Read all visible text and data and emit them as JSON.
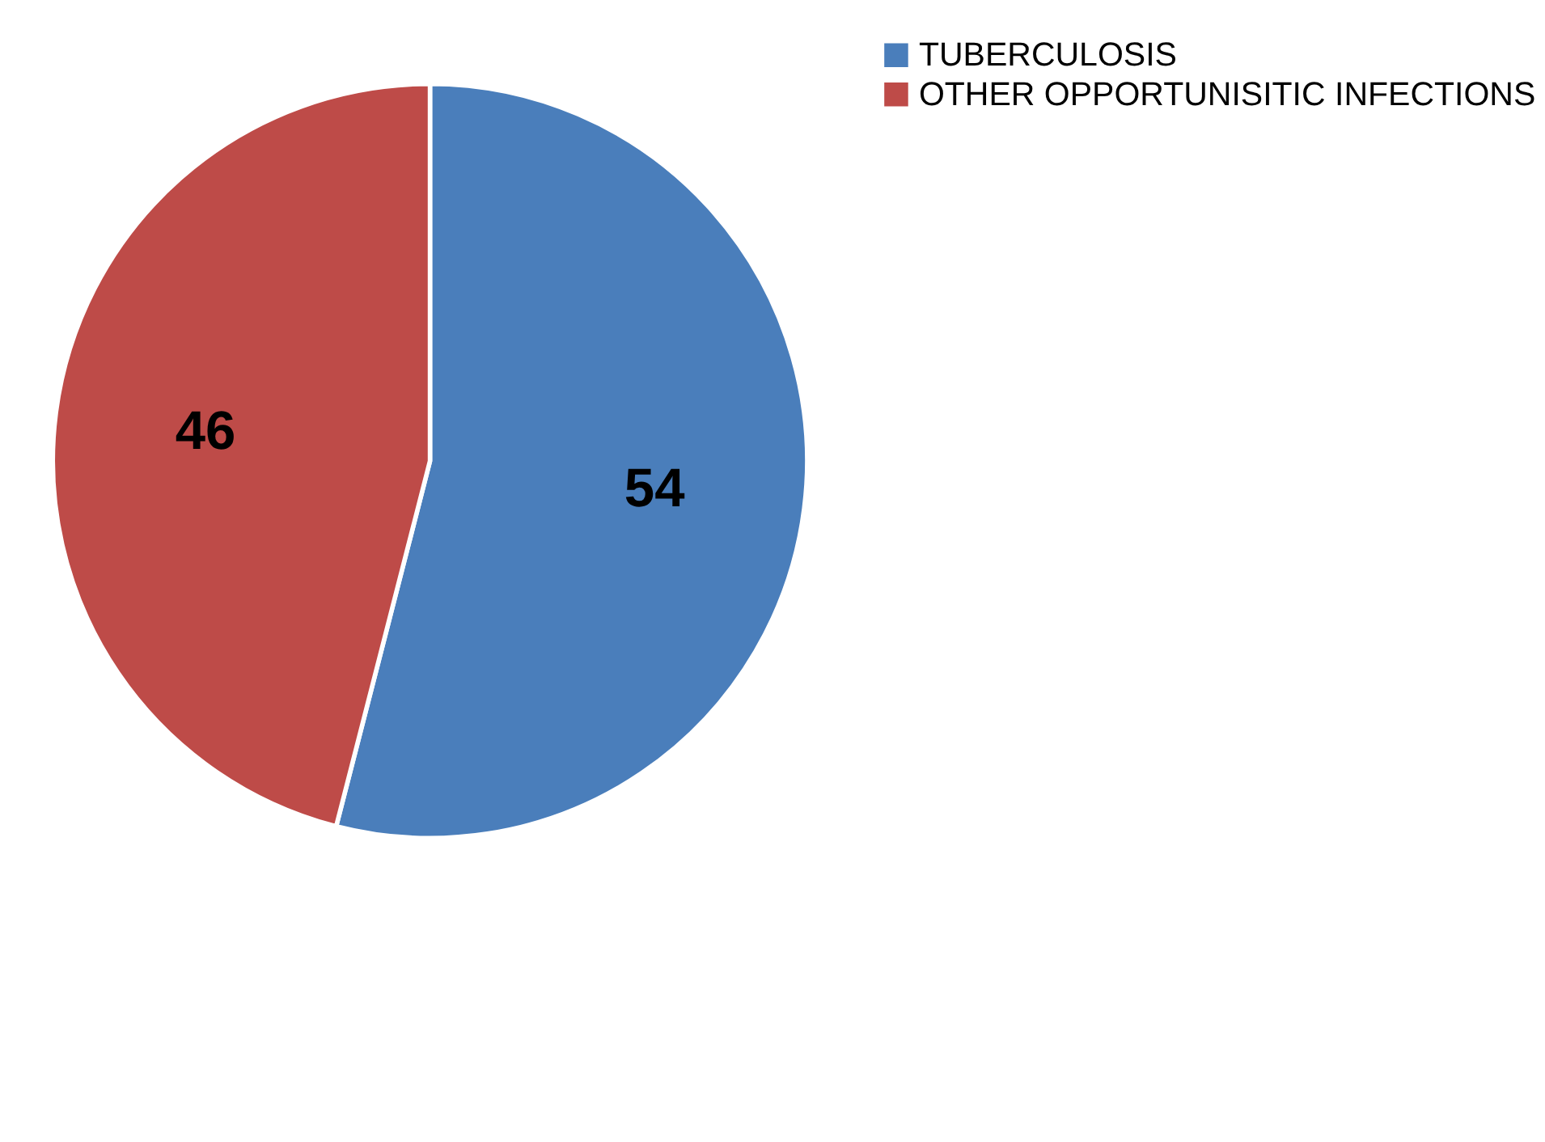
{
  "chart_data": {
    "type": "pie",
    "categories": [
      "TUBERCULOSIS",
      "OTHER OPPORTUNISITIC INFECTIONS"
    ],
    "values": [
      54,
      46
    ],
    "colors": [
      "#4a7ebb",
      "#be4b48"
    ],
    "data_labels": true,
    "legend": "right"
  }
}
